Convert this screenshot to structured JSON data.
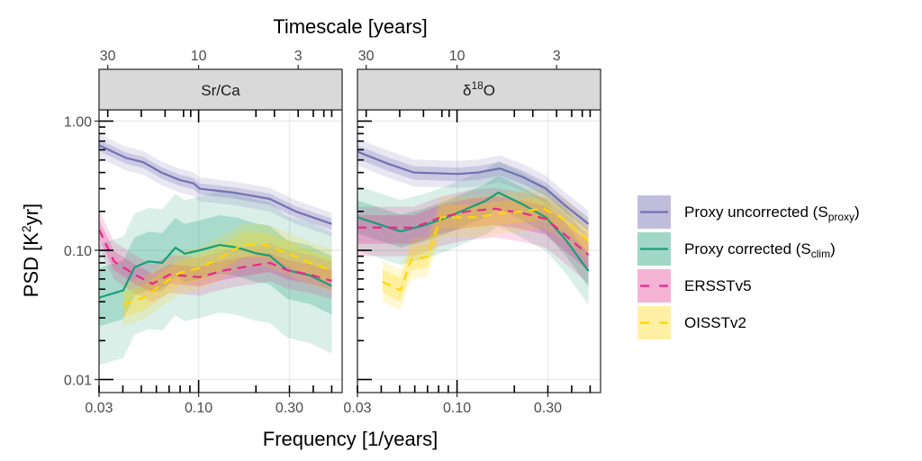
{
  "chart_data": {
    "type": "line",
    "title": "",
    "top_axis_title": "Timescale [years]",
    "xlabel": "Frequency [1/years]",
    "ylabel_main": "PSD [K",
    "ylabel_sup": "2",
    "ylabel_tail": "yr]",
    "xscale": "log",
    "yscale": "log",
    "xlim": [
      0.03,
      0.56
    ],
    "ylim": [
      0.0085,
      1.15
    ],
    "x_ticks": [
      0.03,
      0.1,
      0.3
    ],
    "x_tick_labels": [
      "0.03",
      "0.10",
      "0.30"
    ],
    "top_ticks_years": [
      30,
      10,
      3
    ],
    "top_tick_labels": [
      "30",
      "10",
      "3"
    ],
    "y_ticks": [
      0.01,
      0.1,
      1.0
    ],
    "y_tick_labels": [
      "0.01",
      "0.10",
      "1.00"
    ],
    "grid": true,
    "legend_position": "right",
    "legend": [
      {
        "key": "uncorr",
        "label": "Proxy uncorrected (S",
        "sub": "proxy",
        "tail": ")",
        "color": "#7570b3",
        "fill": "#c0bddc",
        "dash": false
      },
      {
        "key": "corr",
        "label": "Proxy corrected (S",
        "sub": "clim",
        "tail": ")",
        "color": "#1b9e77",
        "fill": "#a1d7c6",
        "dash": false
      },
      {
        "key": "ersst",
        "label": "ERSSTv5",
        "sub": "",
        "tail": "",
        "color": "#e7298a",
        "fill": "#f5b4d5",
        "dash": true
      },
      {
        "key": "oisst",
        "label": "OISSTv2",
        "sub": "",
        "tail": "",
        "color": "#ffd700",
        "fill": "#fff0a3",
        "dash": true
      }
    ],
    "panels": [
      {
        "strip": "Sr/Ca",
        "strip_delta": "",
        "strip_sup": "",
        "series": [
          {
            "key": "corr",
            "x": [
              0.03,
              0.0402,
              0.0461,
              0.0546,
              0.0644,
              0.0756,
              0.0846,
              0.1012,
              0.129,
              0.16,
              0.199,
              0.236,
              0.293,
              0.383,
              0.5
            ],
            "y": [
              0.043,
              0.049,
              0.074,
              0.082,
              0.08,
              0.105,
              0.094,
              0.1,
              0.11,
              0.105,
              0.095,
              0.091,
              0.07,
              0.064,
              0.053
            ],
            "inner": [
              0.6,
              1.7
            ],
            "outer": [
              0.3,
              2.6
            ]
          },
          {
            "key": "ersst",
            "x": [
              0.03,
              0.036,
              0.0461,
              0.0571,
              0.0707,
              0.1012,
              0.137,
              0.19,
              0.236,
              0.293,
              0.383,
              0.5
            ],
            "y": [
              0.145,
              0.082,
              0.065,
              0.055,
              0.065,
              0.062,
              0.07,
              0.076,
              0.08,
              0.07,
              0.065,
              0.058
            ],
            "inner": [
              0.85,
              1.2
            ],
            "outer": [
              0.72,
              1.42
            ]
          },
          {
            "key": "oisst",
            "x": [
              0.0402,
              0.0513,
              0.0637,
              0.0797,
              0.1012,
              0.129,
              0.169,
              0.222,
              0.293,
              0.383,
              0.5
            ],
            "y": [
              0.038,
              0.043,
              0.054,
              0.067,
              0.073,
              0.087,
              0.11,
              0.11,
              0.095,
              0.08,
              0.07
            ],
            "inner": [
              0.8,
              1.25
            ],
            "outer": [
              0.68,
              1.45
            ]
          },
          {
            "key": "uncorr",
            "x": [
              0.03,
              0.0415,
              0.0513,
              0.0637,
              0.0797,
              0.0941,
              0.1012,
              0.152,
              0.236,
              0.323,
              0.5
            ],
            "y": [
              0.65,
              0.52,
              0.48,
              0.4,
              0.35,
              0.33,
              0.3,
              0.28,
              0.25,
              0.2,
              0.16
            ],
            "inner": [
              0.9,
              1.1
            ],
            "outer": [
              0.8,
              1.22
            ]
          }
        ]
      },
      {
        "strip": "",
        "strip_delta": "δ",
        "strip_sup": "18",
        "strip_tail": "O",
        "series": [
          {
            "key": "corr",
            "x": [
              0.03,
              0.0385,
              0.0505,
              0.0662,
              0.0888,
              0.113,
              0.14,
              0.165,
              0.217,
              0.293,
              0.373,
              0.49
            ],
            "y": [
              0.18,
              0.16,
              0.14,
              0.155,
              0.18,
              0.21,
              0.24,
              0.28,
              0.23,
              0.18,
              0.12,
              0.069
            ],
            "inner": [
              0.75,
              1.35
            ],
            "outer": [
              0.55,
              1.75
            ]
          },
          {
            "key": "ersst",
            "x": [
              0.03,
              0.0385,
              0.0593,
              0.0821,
              0.113,
              0.157,
              0.217,
              0.293,
              0.373,
              0.49
            ],
            "y": [
              0.15,
              0.15,
              0.15,
              0.18,
              0.2,
              0.21,
              0.195,
              0.175,
              0.13,
              0.092
            ],
            "inner": [
              0.75,
              1.25
            ],
            "outer": [
              0.6,
              1.45
            ]
          },
          {
            "key": "oisst",
            "x": [
              0.0406,
              0.0505,
              0.0575,
              0.07,
              0.0821,
              0.0965,
              0.126,
              0.157,
              0.217,
              0.285,
              0.373,
              0.49
            ],
            "y": [
              0.057,
              0.049,
              0.085,
              0.089,
              0.18,
              0.18,
              0.18,
              0.19,
              0.2,
              0.21,
              0.17,
              0.117
            ],
            "inner": [
              0.82,
              1.25
            ],
            "outer": [
              0.7,
              1.45
            ]
          },
          {
            "key": "uncorr",
            "x": [
              0.03,
              0.043,
              0.0593,
              0.1012,
              0.129,
              0.168,
              0.221,
              0.293,
              0.373,
              0.49
            ],
            "y": [
              0.58,
              0.47,
              0.4,
              0.39,
              0.4,
              0.43,
              0.37,
              0.3,
              0.22,
              0.16
            ],
            "inner": [
              0.88,
              1.12
            ],
            "outer": [
              0.78,
              1.26
            ]
          }
        ]
      }
    ]
  }
}
